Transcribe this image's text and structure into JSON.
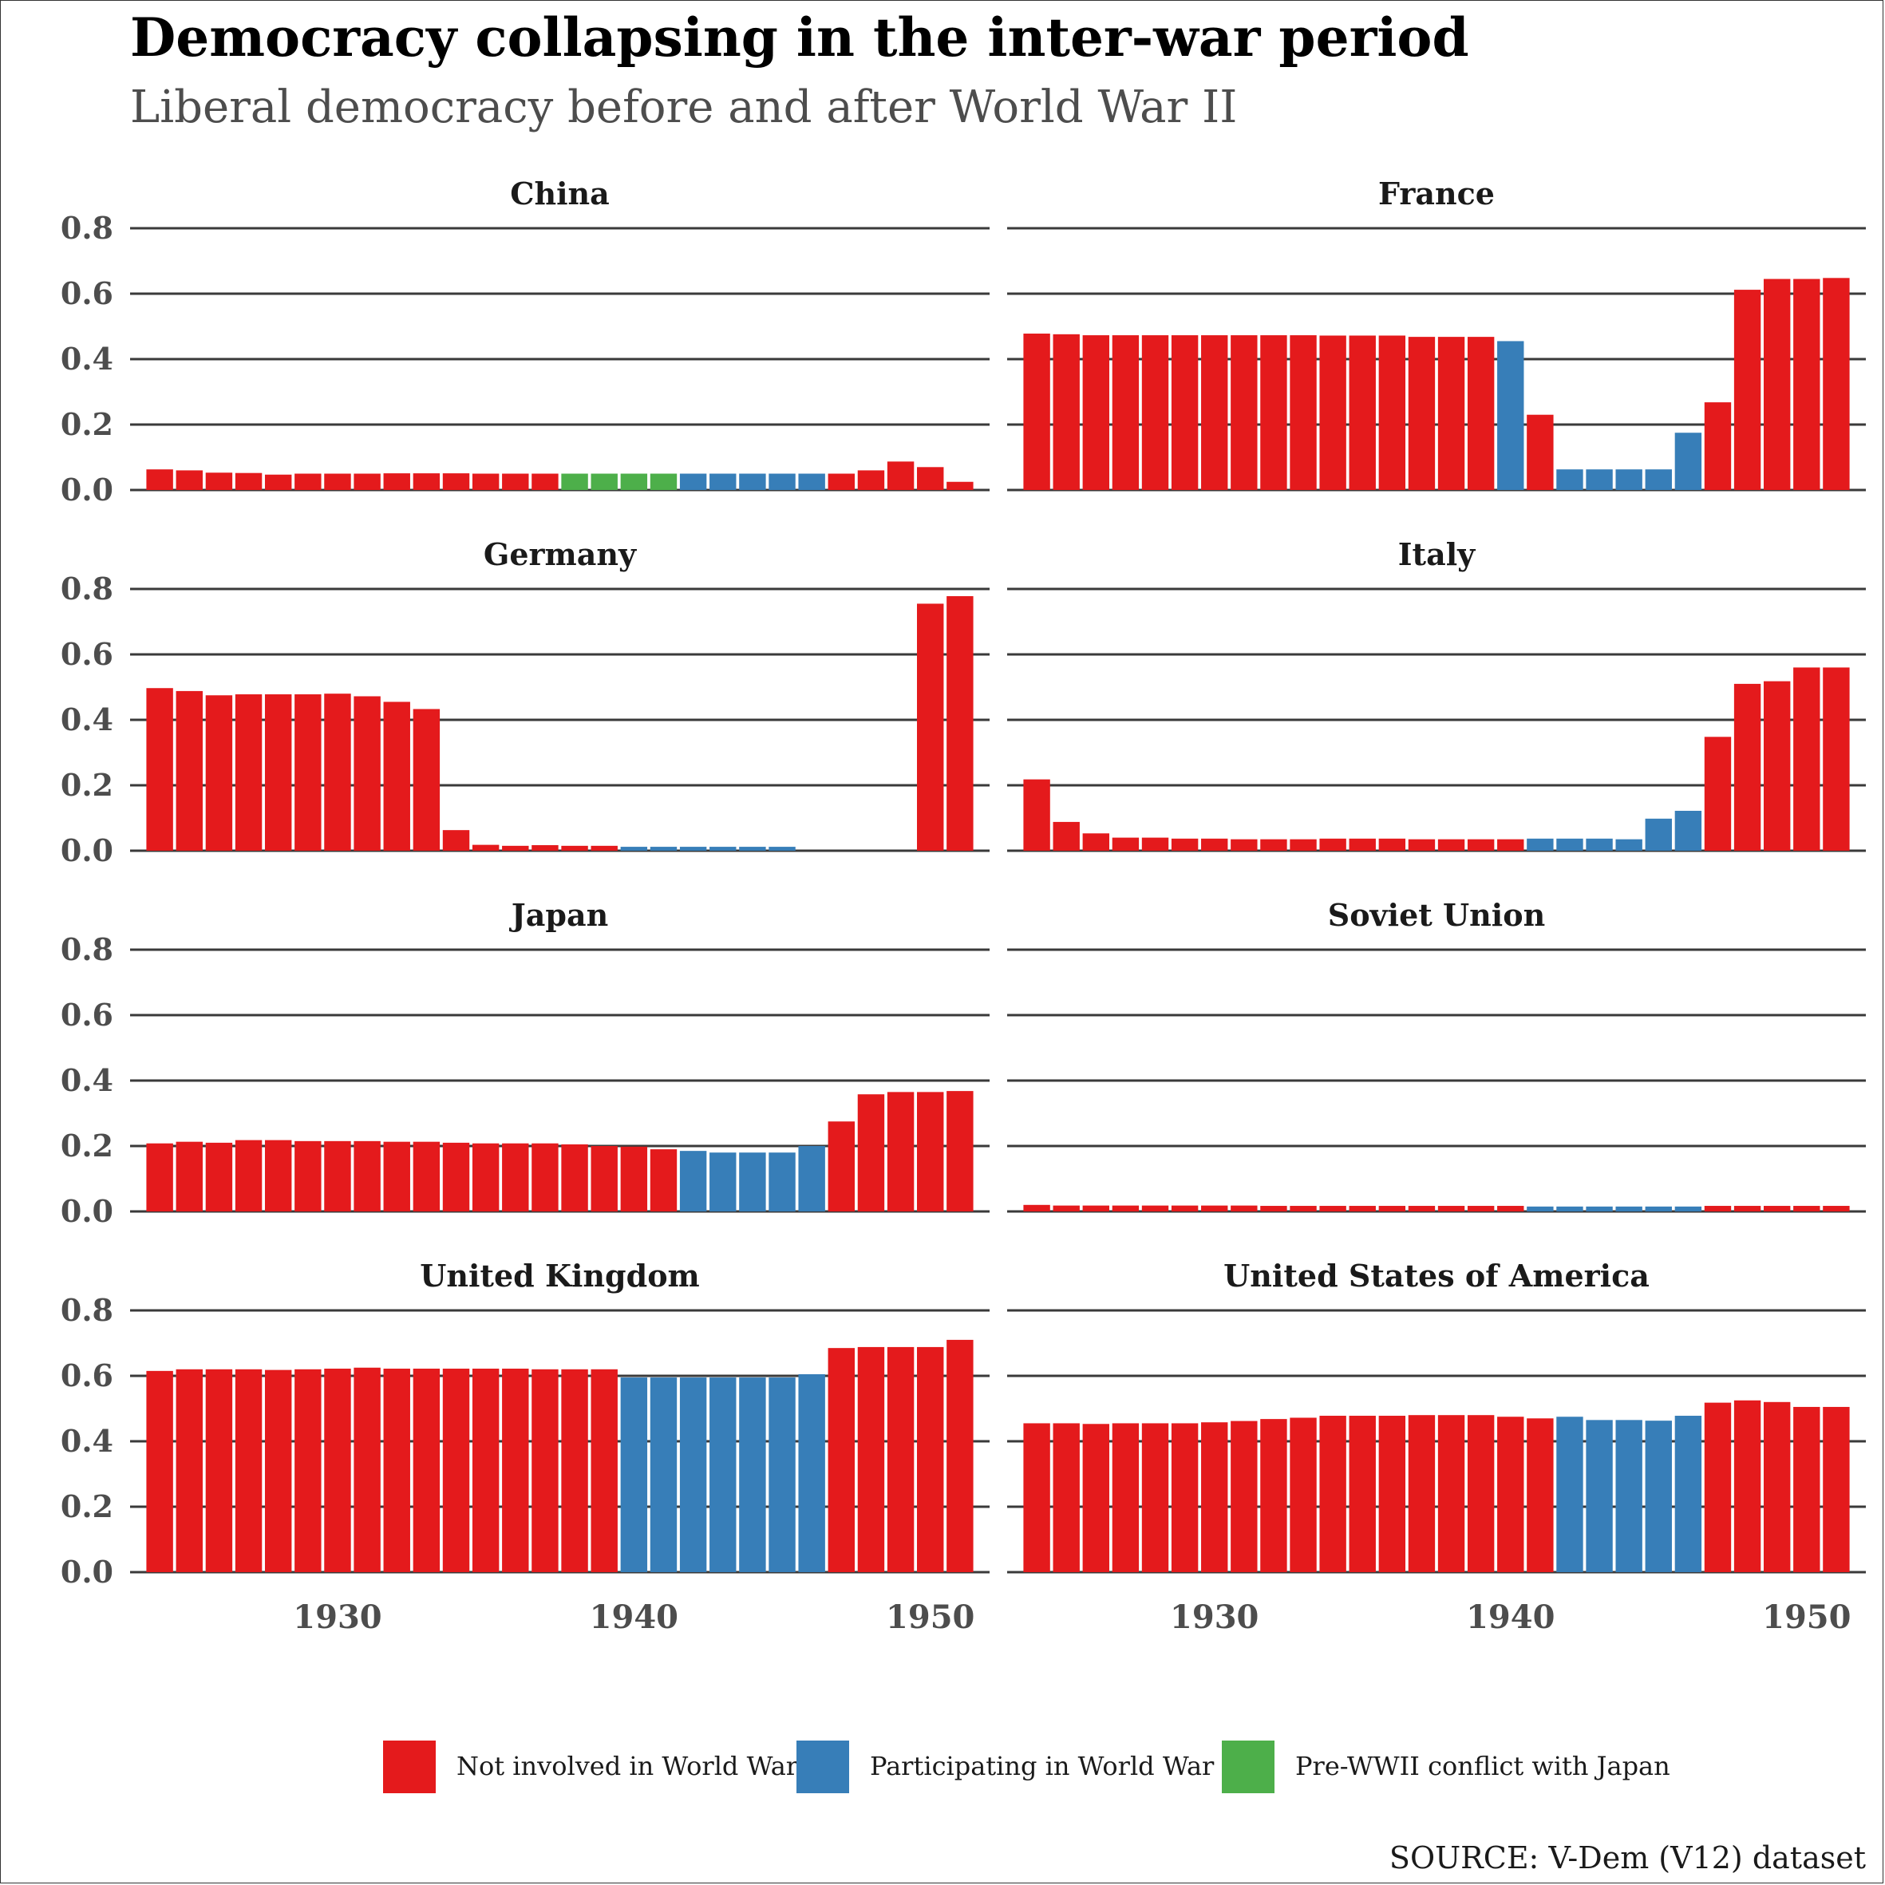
{
  "title": "Democracy collapsing in the inter-war period",
  "subtitle": "Liberal democracy before and after World War II",
  "source": "SOURCE: V-Dem (V12) dataset",
  "colors": {
    "not_involved": "#E41A1C",
    "wwii": "#377EB8",
    "japan_conflict": "#4DAF4A"
  },
  "legend": [
    {
      "key": "not_involved",
      "label": "Not involved in World Wars"
    },
    {
      "key": "wwii",
      "label": "Participating in World War II"
    },
    {
      "key": "japan_conflict",
      "label": "Pre-WWII conflict with Japan"
    }
  ],
  "chart_data": {
    "type": "bar",
    "facet_layout": "4 rows x 2 columns",
    "ylim": [
      0,
      0.8
    ],
    "y_ticks": [
      "0.0",
      "0.2",
      "0.4",
      "0.6",
      "0.8"
    ],
    "x_ticks": [
      1930,
      1940,
      1950
    ],
    "xlim": [
      1923,
      1952
    ],
    "categories_note": "years 1924-1951 (x), liberal democracy index (y)",
    "panels": [
      {
        "country": "China",
        "years": [
          1924,
          1925,
          1926,
          1927,
          1928,
          1929,
          1930,
          1931,
          1932,
          1933,
          1934,
          1935,
          1936,
          1937,
          1938,
          1939,
          1940,
          1941,
          1942,
          1943,
          1944,
          1945,
          1946,
          1947,
          1948,
          1949,
          1950,
          1951
        ],
        "values": [
          0.063,
          0.06,
          0.053,
          0.052,
          0.047,
          0.05,
          0.05,
          0.05,
          0.051,
          0.051,
          0.051,
          0.05,
          0.05,
          0.05,
          0.05,
          0.05,
          0.05,
          0.05,
          0.05,
          0.05,
          0.05,
          0.05,
          0.05,
          0.05,
          0.06,
          0.087,
          0.07,
          0.025
        ],
        "status": [
          "not_involved",
          "not_involved",
          "not_involved",
          "not_involved",
          "not_involved",
          "not_involved",
          "not_involved",
          "not_involved",
          "not_involved",
          "not_involved",
          "not_involved",
          "not_involved",
          "not_involved",
          "not_involved",
          "japan_conflict",
          "japan_conflict",
          "japan_conflict",
          "japan_conflict",
          "wwii",
          "wwii",
          "wwii",
          "wwii",
          "wwii",
          "not_involved",
          "not_involved",
          "not_involved",
          "not_involved",
          "not_involved"
        ]
      },
      {
        "country": "France",
        "years": [
          1924,
          1925,
          1926,
          1927,
          1928,
          1929,
          1930,
          1931,
          1932,
          1933,
          1934,
          1935,
          1936,
          1937,
          1938,
          1939,
          1940,
          1941,
          1942,
          1943,
          1944,
          1945,
          1946,
          1947,
          1948,
          1949,
          1950,
          1951
        ],
        "values": [
          0.478,
          0.476,
          0.473,
          0.473,
          0.473,
          0.473,
          0.473,
          0.473,
          0.473,
          0.473,
          0.472,
          0.472,
          0.472,
          0.468,
          0.468,
          0.468,
          0.455,
          0.23,
          0.063,
          0.063,
          0.063,
          0.063,
          0.175,
          0.268,
          0.612,
          0.645,
          0.645,
          0.648
        ],
        "status": [
          "not_involved",
          "not_involved",
          "not_involved",
          "not_involved",
          "not_involved",
          "not_involved",
          "not_involved",
          "not_involved",
          "not_involved",
          "not_involved",
          "not_involved",
          "not_involved",
          "not_involved",
          "not_involved",
          "not_involved",
          "not_involved",
          "wwii",
          "not_involved",
          "wwii",
          "wwii",
          "wwii",
          "wwii",
          "wwii",
          "not_involved",
          "not_involved",
          "not_involved",
          "not_involved",
          "not_involved"
        ]
      },
      {
        "country": "Germany",
        "years": [
          1924,
          1925,
          1926,
          1927,
          1928,
          1929,
          1930,
          1931,
          1932,
          1933,
          1934,
          1935,
          1936,
          1937,
          1938,
          1939,
          1940,
          1941,
          1942,
          1943,
          1944,
          1945,
          1946,
          1947,
          1948,
          1949,
          1950,
          1951
        ],
        "values": [
          0.497,
          0.488,
          0.475,
          0.478,
          0.478,
          0.478,
          0.48,
          0.472,
          0.455,
          0.433,
          0.063,
          0.018,
          0.015,
          0.017,
          0.015,
          0.015,
          0.012,
          0.012,
          0.012,
          0.012,
          0.012,
          0.012,
          0,
          0,
          0,
          0,
          0.755,
          0.778
        ],
        "status": [
          "not_involved",
          "not_involved",
          "not_involved",
          "not_involved",
          "not_involved",
          "not_involved",
          "not_involved",
          "not_involved",
          "not_involved",
          "not_involved",
          "not_involved",
          "not_involved",
          "not_involved",
          "not_involved",
          "not_involved",
          "not_involved",
          "wwii",
          "wwii",
          "wwii",
          "wwii",
          "wwii",
          "wwii",
          "not_involved",
          "not_involved",
          "not_involved",
          "not_involved",
          "not_involved",
          "not_involved"
        ]
      },
      {
        "country": "Italy",
        "years": [
          1924,
          1925,
          1926,
          1927,
          1928,
          1929,
          1930,
          1931,
          1932,
          1933,
          1934,
          1935,
          1936,
          1937,
          1938,
          1939,
          1940,
          1941,
          1942,
          1943,
          1944,
          1945,
          1946,
          1947,
          1948,
          1949,
          1950,
          1951
        ],
        "values": [
          0.218,
          0.088,
          0.053,
          0.04,
          0.04,
          0.037,
          0.037,
          0.035,
          0.035,
          0.035,
          0.037,
          0.037,
          0.037,
          0.035,
          0.035,
          0.035,
          0.035,
          0.037,
          0.037,
          0.037,
          0.035,
          0.098,
          0.122,
          0.348,
          0.51,
          0.518,
          0.56,
          0.56
        ],
        "status": [
          "not_involved",
          "not_involved",
          "not_involved",
          "not_involved",
          "not_involved",
          "not_involved",
          "not_involved",
          "not_involved",
          "not_involved",
          "not_involved",
          "not_involved",
          "not_involved",
          "not_involved",
          "not_involved",
          "not_involved",
          "not_involved",
          "not_involved",
          "wwii",
          "wwii",
          "wwii",
          "wwii",
          "wwii",
          "wwii",
          "not_involved",
          "not_involved",
          "not_involved",
          "not_involved",
          "not_involved"
        ]
      },
      {
        "country": "Japan",
        "years": [
          1924,
          1925,
          1926,
          1927,
          1928,
          1929,
          1930,
          1931,
          1932,
          1933,
          1934,
          1935,
          1936,
          1937,
          1938,
          1939,
          1940,
          1941,
          1942,
          1943,
          1944,
          1945,
          1946,
          1947,
          1948,
          1949,
          1950,
          1951
        ],
        "values": [
          0.208,
          0.213,
          0.21,
          0.218,
          0.218,
          0.215,
          0.215,
          0.215,
          0.213,
          0.213,
          0.21,
          0.208,
          0.208,
          0.208,
          0.205,
          0.2,
          0.198,
          0.19,
          0.185,
          0.18,
          0.18,
          0.18,
          0.2,
          0.275,
          0.358,
          0.365,
          0.365,
          0.368
        ],
        "status": [
          "not_involved",
          "not_involved",
          "not_involved",
          "not_involved",
          "not_involved",
          "not_involved",
          "not_involved",
          "not_involved",
          "not_involved",
          "not_involved",
          "not_involved",
          "not_involved",
          "not_involved",
          "not_involved",
          "not_involved",
          "not_involved",
          "not_involved",
          "not_involved",
          "wwii",
          "wwii",
          "wwii",
          "wwii",
          "wwii",
          "not_involved",
          "not_involved",
          "not_involved",
          "not_involved",
          "not_involved"
        ]
      },
      {
        "country": "Soviet Union",
        "years": [
          1924,
          1925,
          1926,
          1927,
          1928,
          1929,
          1930,
          1931,
          1932,
          1933,
          1934,
          1935,
          1936,
          1937,
          1938,
          1939,
          1940,
          1941,
          1942,
          1943,
          1944,
          1945,
          1946,
          1947,
          1948,
          1949,
          1950,
          1951
        ],
        "values": [
          0.02,
          0.018,
          0.018,
          0.018,
          0.018,
          0.018,
          0.018,
          0.018,
          0.017,
          0.017,
          0.017,
          0.017,
          0.017,
          0.017,
          0.017,
          0.017,
          0.017,
          0.015,
          0.015,
          0.015,
          0.015,
          0.015,
          0.015,
          0.017,
          0.017,
          0.017,
          0.017,
          0.017
        ],
        "status": [
          "not_involved",
          "not_involved",
          "not_involved",
          "not_involved",
          "not_involved",
          "not_involved",
          "not_involved",
          "not_involved",
          "not_involved",
          "not_involved",
          "not_involved",
          "not_involved",
          "not_involved",
          "not_involved",
          "not_involved",
          "not_involved",
          "not_involved",
          "wwii",
          "wwii",
          "wwii",
          "wwii",
          "wwii",
          "wwii",
          "not_involved",
          "not_involved",
          "not_involved",
          "not_involved",
          "not_involved"
        ]
      },
      {
        "country": "United Kingdom",
        "years": [
          1924,
          1925,
          1926,
          1927,
          1928,
          1929,
          1930,
          1931,
          1932,
          1933,
          1934,
          1935,
          1936,
          1937,
          1938,
          1939,
          1940,
          1941,
          1942,
          1943,
          1944,
          1945,
          1946,
          1947,
          1948,
          1949,
          1950,
          1951
        ],
        "values": [
          0.615,
          0.62,
          0.62,
          0.62,
          0.618,
          0.62,
          0.622,
          0.625,
          0.622,
          0.622,
          0.622,
          0.622,
          0.622,
          0.62,
          0.62,
          0.62,
          0.595,
          0.595,
          0.595,
          0.595,
          0.595,
          0.595,
          0.605,
          0.685,
          0.688,
          0.688,
          0.688,
          0.71
        ],
        "status": [
          "not_involved",
          "not_involved",
          "not_involved",
          "not_involved",
          "not_involved",
          "not_involved",
          "not_involved",
          "not_involved",
          "not_involved",
          "not_involved",
          "not_involved",
          "not_involved",
          "not_involved",
          "not_involved",
          "not_involved",
          "not_involved",
          "wwii",
          "wwii",
          "wwii",
          "wwii",
          "wwii",
          "wwii",
          "wwii",
          "not_involved",
          "not_involved",
          "not_involved",
          "not_involved",
          "not_involved"
        ]
      },
      {
        "country": "United States of America",
        "years": [
          1924,
          1925,
          1926,
          1927,
          1928,
          1929,
          1930,
          1931,
          1932,
          1933,
          1934,
          1935,
          1936,
          1937,
          1938,
          1939,
          1940,
          1941,
          1942,
          1943,
          1944,
          1945,
          1946,
          1947,
          1948,
          1949,
          1950,
          1951
        ],
        "values": [
          0.455,
          0.455,
          0.453,
          0.455,
          0.455,
          0.455,
          0.458,
          0.462,
          0.468,
          0.472,
          0.478,
          0.478,
          0.478,
          0.48,
          0.48,
          0.48,
          0.475,
          0.47,
          0.475,
          0.465,
          0.465,
          0.463,
          0.478,
          0.518,
          0.525,
          0.52,
          0.505,
          0.505
        ],
        "status": [
          "not_involved",
          "not_involved",
          "not_involved",
          "not_involved",
          "not_involved",
          "not_involved",
          "not_involved",
          "not_involved",
          "not_involved",
          "not_involved",
          "not_involved",
          "not_involved",
          "not_involved",
          "not_involved",
          "not_involved",
          "not_involved",
          "not_involved",
          "not_involved",
          "wwii",
          "wwii",
          "wwii",
          "wwii",
          "wwii",
          "not_involved",
          "not_involved",
          "not_involved",
          "not_involved",
          "not_involved"
        ]
      }
    ]
  }
}
